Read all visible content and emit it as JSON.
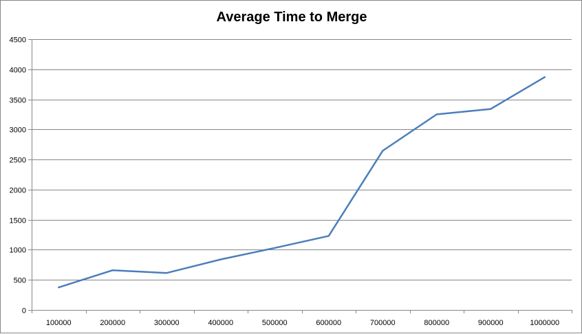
{
  "chart_data": {
    "type": "line",
    "title": "Average Time to Merge",
    "xlabel": "",
    "ylabel": "",
    "categories": [
      "100000",
      "200000",
      "300000",
      "400000",
      "500000",
      "600000",
      "700000",
      "800000",
      "900000",
      "1000000"
    ],
    "series": [
      {
        "values": [
          375,
          660,
          615,
          840,
          1030,
          1230,
          2645,
          3250,
          3340,
          3870
        ]
      }
    ],
    "ylim": [
      0,
      4500
    ],
    "yticks": [
      "0",
      "500",
      "1000",
      "1500",
      "2000",
      "2500",
      "3000",
      "3500",
      "4000",
      "4500"
    ],
    "ytick_values": [
      0,
      500,
      1000,
      1500,
      2000,
      2500,
      3000,
      3500,
      4000,
      4500
    ],
    "grid": "horizontal",
    "legend": "none",
    "line_color": "#4a7ebb",
    "grid_color": "#868686"
  }
}
